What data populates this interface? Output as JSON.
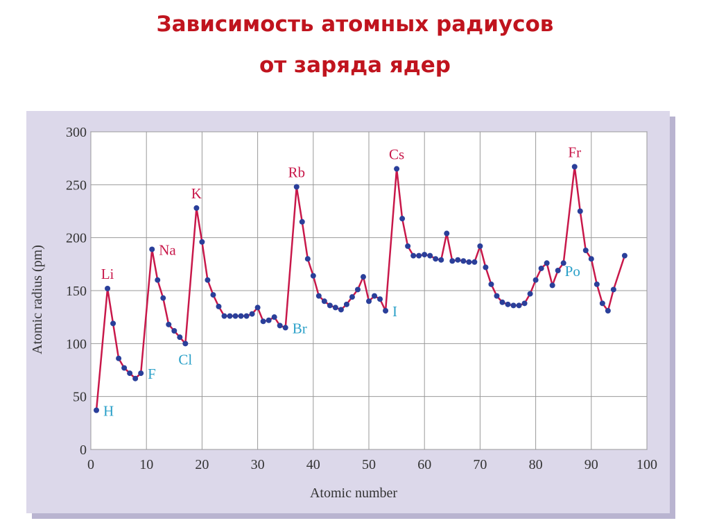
{
  "chart_data": {
    "type": "line",
    "title": [
      "Зависимость атомных радиусов",
      "от заряда ядер"
    ],
    "x_label": "Atomic number",
    "y_label": "Atomic radius (pm)",
    "line_color": "#c8184a",
    "marker_color": "#2a3f9a",
    "grid": true,
    "xlim": [
      0,
      100
    ],
    "xticks": [
      0,
      10,
      20,
      30,
      40,
      50,
      60,
      70,
      80,
      90,
      100
    ],
    "ylim": [
      0,
      300
    ],
    "yticks": [
      0,
      50,
      100,
      150,
      200,
      250,
      300
    ],
    "x": [
      1,
      3,
      4,
      5,
      6,
      7,
      8,
      9,
      11,
      12,
      13,
      14,
      15,
      16,
      17,
      19,
      20,
      21,
      22,
      23,
      24,
      25,
      26,
      27,
      28,
      29,
      30,
      31,
      32,
      33,
      34,
      35,
      37,
      38,
      39,
      40,
      41,
      42,
      43,
      44,
      45,
      46,
      47,
      48,
      49,
      50,
      51,
      52,
      53,
      55,
      56,
      57,
      58,
      59,
      60,
      61,
      62,
      63,
      64,
      65,
      66,
      67,
      68,
      69,
      70,
      71,
      72,
      73,
      74,
      75,
      76,
      77,
      78,
      79,
      80,
      81,
      82,
      83,
      84,
      85,
      87,
      88,
      89,
      90,
      91,
      92,
      93,
      94,
      96
    ],
    "values": [
      37,
      152,
      119,
      86,
      77,
      72,
      67,
      72,
      189,
      160,
      143,
      118,
      112,
      106,
      100,
      228,
      196,
      160,
      146,
      135,
      126,
      126,
      126,
      126,
      126,
      128,
      134,
      121,
      122,
      125,
      117,
      115,
      248,
      215,
      180,
      164,
      145,
      140,
      136,
      134,
      132,
      137,
      144,
      151,
      163,
      140,
      145,
      142,
      131,
      265,
      218,
      192,
      183,
      183,
      184,
      183,
      180,
      179,
      204,
      178,
      179,
      178,
      177,
      177,
      192,
      172,
      156,
      145,
      139,
      137,
      136,
      136,
      138,
      147,
      160,
      171,
      176,
      155,
      169,
      176,
      267,
      225,
      188,
      180,
      156,
      138,
      131,
      151,
      183
    ],
    "annotations": [
      {
        "text": "H",
        "x": 1,
        "side": "right",
        "color": "#2aa0c8"
      },
      {
        "text": "Li",
        "x": 3,
        "side": "above",
        "color": "#c8184a"
      },
      {
        "text": "F",
        "x": 9,
        "side": "right",
        "color": "#2aa0c8"
      },
      {
        "text": "Na",
        "x": 11,
        "side": "right",
        "color": "#c8184a"
      },
      {
        "text": "Cl",
        "x": 17,
        "side": "below",
        "color": "#2aa0c8"
      },
      {
        "text": "K",
        "x": 19,
        "side": "above",
        "color": "#c8184a"
      },
      {
        "text": "Br",
        "x": 35,
        "side": "right",
        "color": "#2aa0c8"
      },
      {
        "text": "Rb",
        "x": 37,
        "side": "above",
        "color": "#c8184a"
      },
      {
        "text": "I",
        "x": 53,
        "side": "right",
        "color": "#2aa0c8"
      },
      {
        "text": "Cs",
        "x": 55,
        "side": "above",
        "color": "#c8184a"
      },
      {
        "text": "Po",
        "x": 84,
        "side": "right",
        "color": "#2aa0c8"
      },
      {
        "text": "Fr",
        "x": 87,
        "side": "above",
        "color": "#c8184a"
      }
    ]
  }
}
